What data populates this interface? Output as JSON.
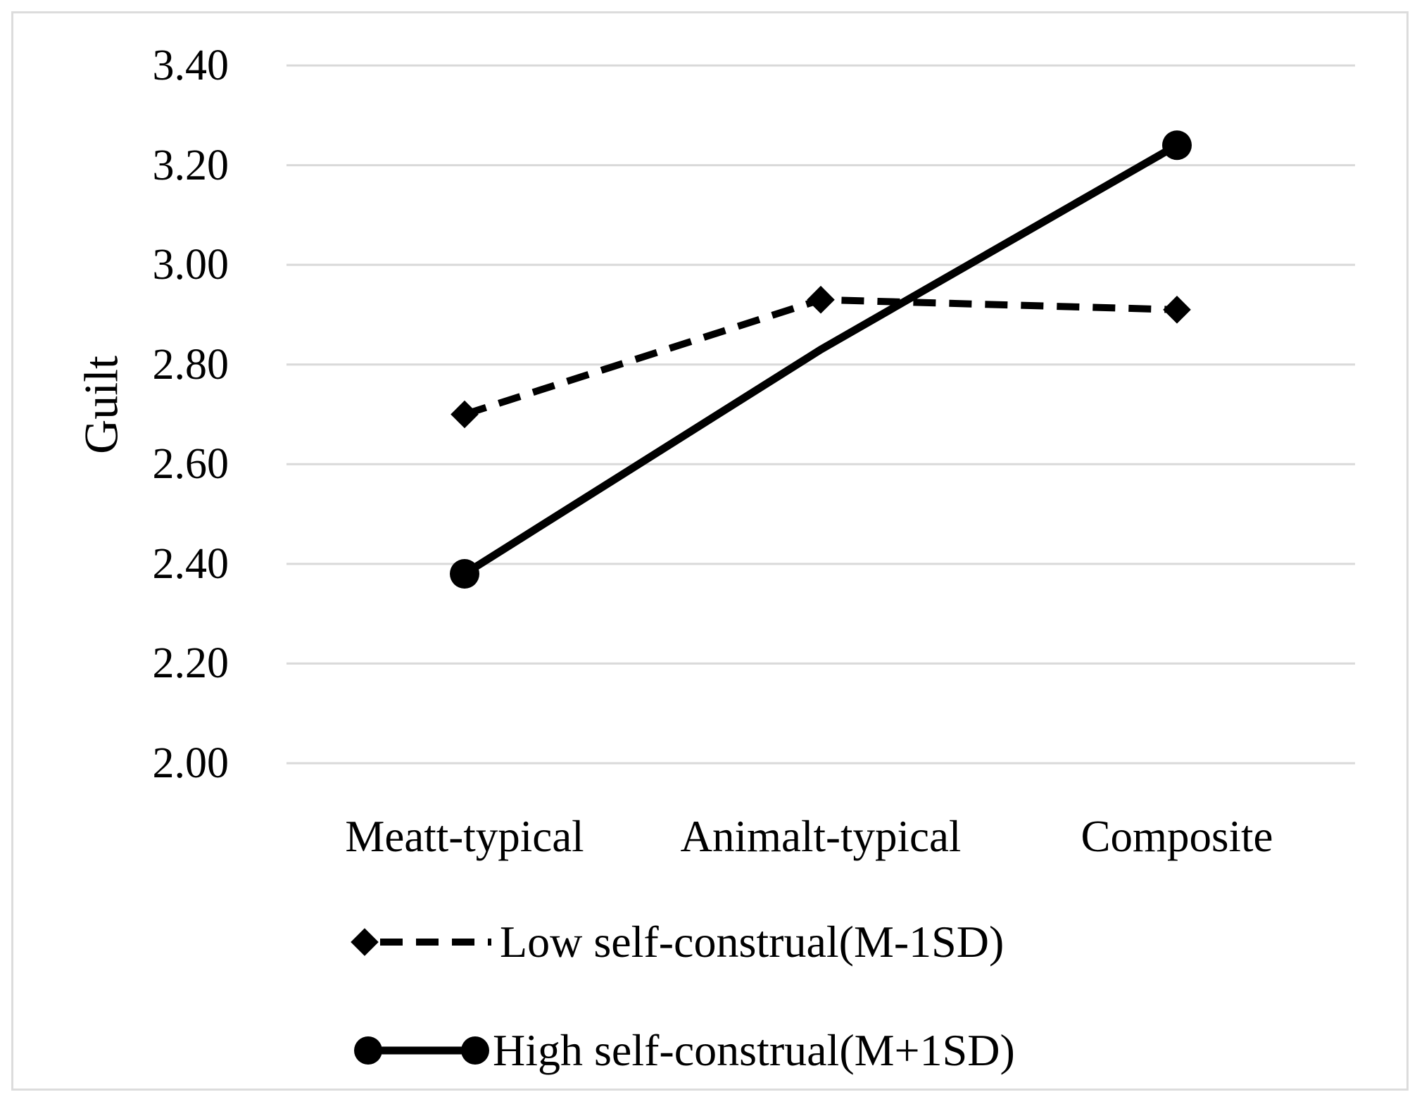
{
  "figure": {
    "background": "#ffffff",
    "frame_color": "#dcdcdc"
  },
  "chart_data": {
    "type": "line",
    "categories": [
      "Meatt-typical",
      "Animalt-typical",
      "Composite"
    ],
    "series": [
      {
        "name": "Low self-construal(M-1SD)",
        "values": [
          2.7,
          2.93,
          2.91
        ],
        "style": "dashed",
        "marker": "diamond",
        "marker_points": [
          0,
          1,
          2
        ]
      },
      {
        "name": "High self-construal(M+1SD)",
        "values": [
          2.38,
          2.83,
          3.24
        ],
        "style": "solid",
        "marker": "circle",
        "marker_points": [
          0,
          2
        ]
      }
    ],
    "title": "",
    "xlabel": "",
    "ylabel": "Guilt",
    "ylim": [
      2.0,
      3.4
    ],
    "ytick_step": 0.2,
    "yticks": [
      "3.40",
      "3.20",
      "3.00",
      "2.80",
      "2.60",
      "2.40",
      "2.20",
      "2.00"
    ],
    "grid": "horizontal",
    "legend_position": "bottom-left",
    "colors": {
      "line": "#000000",
      "grid": "#d9d9d9",
      "text": "#000000"
    }
  }
}
